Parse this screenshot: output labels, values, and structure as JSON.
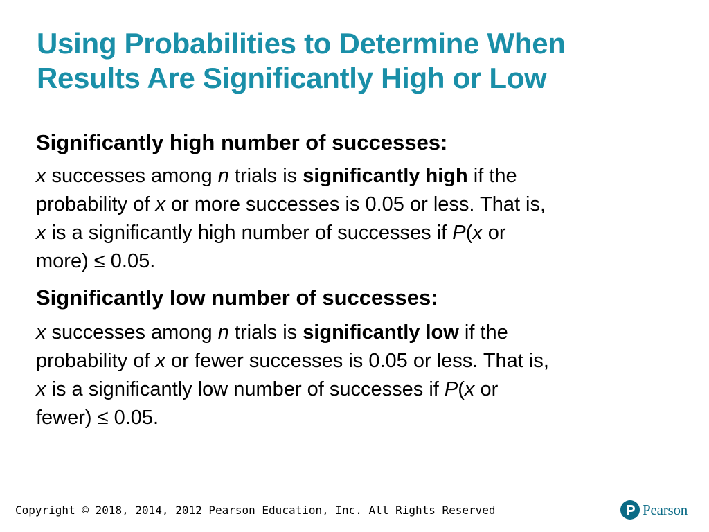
{
  "slide": {
    "title_lines": [
      "Using Probabilities to Determine When",
      "Results Are Significantly High or Low"
    ],
    "high": {
      "heading": "Significantly high number of successes:",
      "l1": {
        "x": "x",
        "a": " successes among ",
        "n": "n",
        "b": " trials is ",
        "bold": "significantly high",
        "c": " if the"
      },
      "l2": {
        "a": "probability of ",
        "x": "x",
        "b": " or more successes is 0.05 or less. That is,"
      },
      "l3": {
        "x": "x",
        "a": " is a significantly high number of successes if ",
        "P": "P",
        "b": "(",
        "x2": "x",
        "c": " or"
      },
      "l4": {
        "a": "more) ≤ 0.05."
      }
    },
    "low": {
      "heading": "Significantly low number of successes:",
      "l1": {
        "x": "x",
        "a": " successes among ",
        "n": "n",
        "b": " trials is ",
        "bold": "significantly low",
        "c": " if the"
      },
      "l2": {
        "a": "probability of ",
        "x": "x",
        "b": " or fewer successes is 0.05 or less. That is,"
      },
      "l3": {
        "x": "x",
        "a": " is a significantly low number of successes if ",
        "P": "P",
        "b": "(",
        "x2": "x",
        "c": " or"
      },
      "l4": {
        "a": "fewer) ≤ 0.05."
      }
    }
  },
  "footer": {
    "copyright": "Copyright © 2018, 2014, 2012 Pearson Education, Inc. All Rights Reserved",
    "logo_text": "Pearson",
    "logo_icon": "pearson-p-icon",
    "brand_color": "#0a6b86",
    "title_color": "#1a8fa8"
  }
}
